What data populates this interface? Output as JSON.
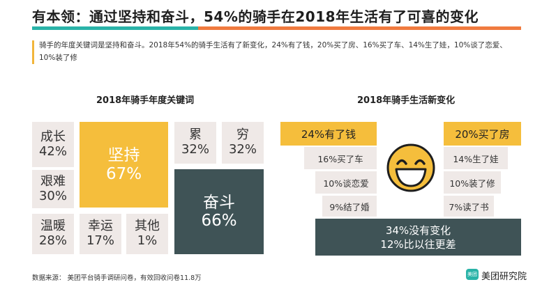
{
  "title": "有本领：通过坚持和奋斗，54%的骑手在2018年生活有了可喜的变化",
  "description": "骑手的年度关键词是坚持和奋斗。2018年54%的骑手生活有了新变化，24%有了钱，20%买了房、16%买了车、14%生了娃，10%谈了恋爱、10%装了修",
  "keywords": {
    "heading": "2018年骑手年度关键词",
    "tiles": [
      {
        "word": "成长",
        "pct": "42%"
      },
      {
        "word": "坚持",
        "pct": "67%"
      },
      {
        "word": "累",
        "pct": "32%"
      },
      {
        "word": "穷",
        "pct": "32%"
      },
      {
        "word": "艰难",
        "pct": "30%"
      },
      {
        "word": "奋斗",
        "pct": "66%"
      },
      {
        "word": "温暖",
        "pct": "28%"
      },
      {
        "word": "幸运",
        "pct": "17%"
      },
      {
        "word": "其他",
        "pct": "1%"
      }
    ]
  },
  "changes": {
    "heading": "2018年骑手生活新变化",
    "left": [
      "24%有了钱",
      "16%买了车",
      "10%谈恋爱",
      "9%结了婚"
    ],
    "right": [
      "20%买了房",
      "14%生了娃",
      "10%装了修",
      "7%读了书"
    ],
    "no_change_1": "34%没有变化",
    "no_change_2": "12%比以往更差",
    "face_icon": "laughing-face-icon"
  },
  "source": "数据来源：  美团平台骑手调研问卷，有效回收问卷11.8万",
  "brand": {
    "logo_text": "美团",
    "name": "美团研究院"
  },
  "colors": {
    "teal": "#2ab3a8",
    "orange": "#f07b3f",
    "yellow": "#f5be3c",
    "dark": "#3f5356",
    "light": "#efe9e7"
  }
}
